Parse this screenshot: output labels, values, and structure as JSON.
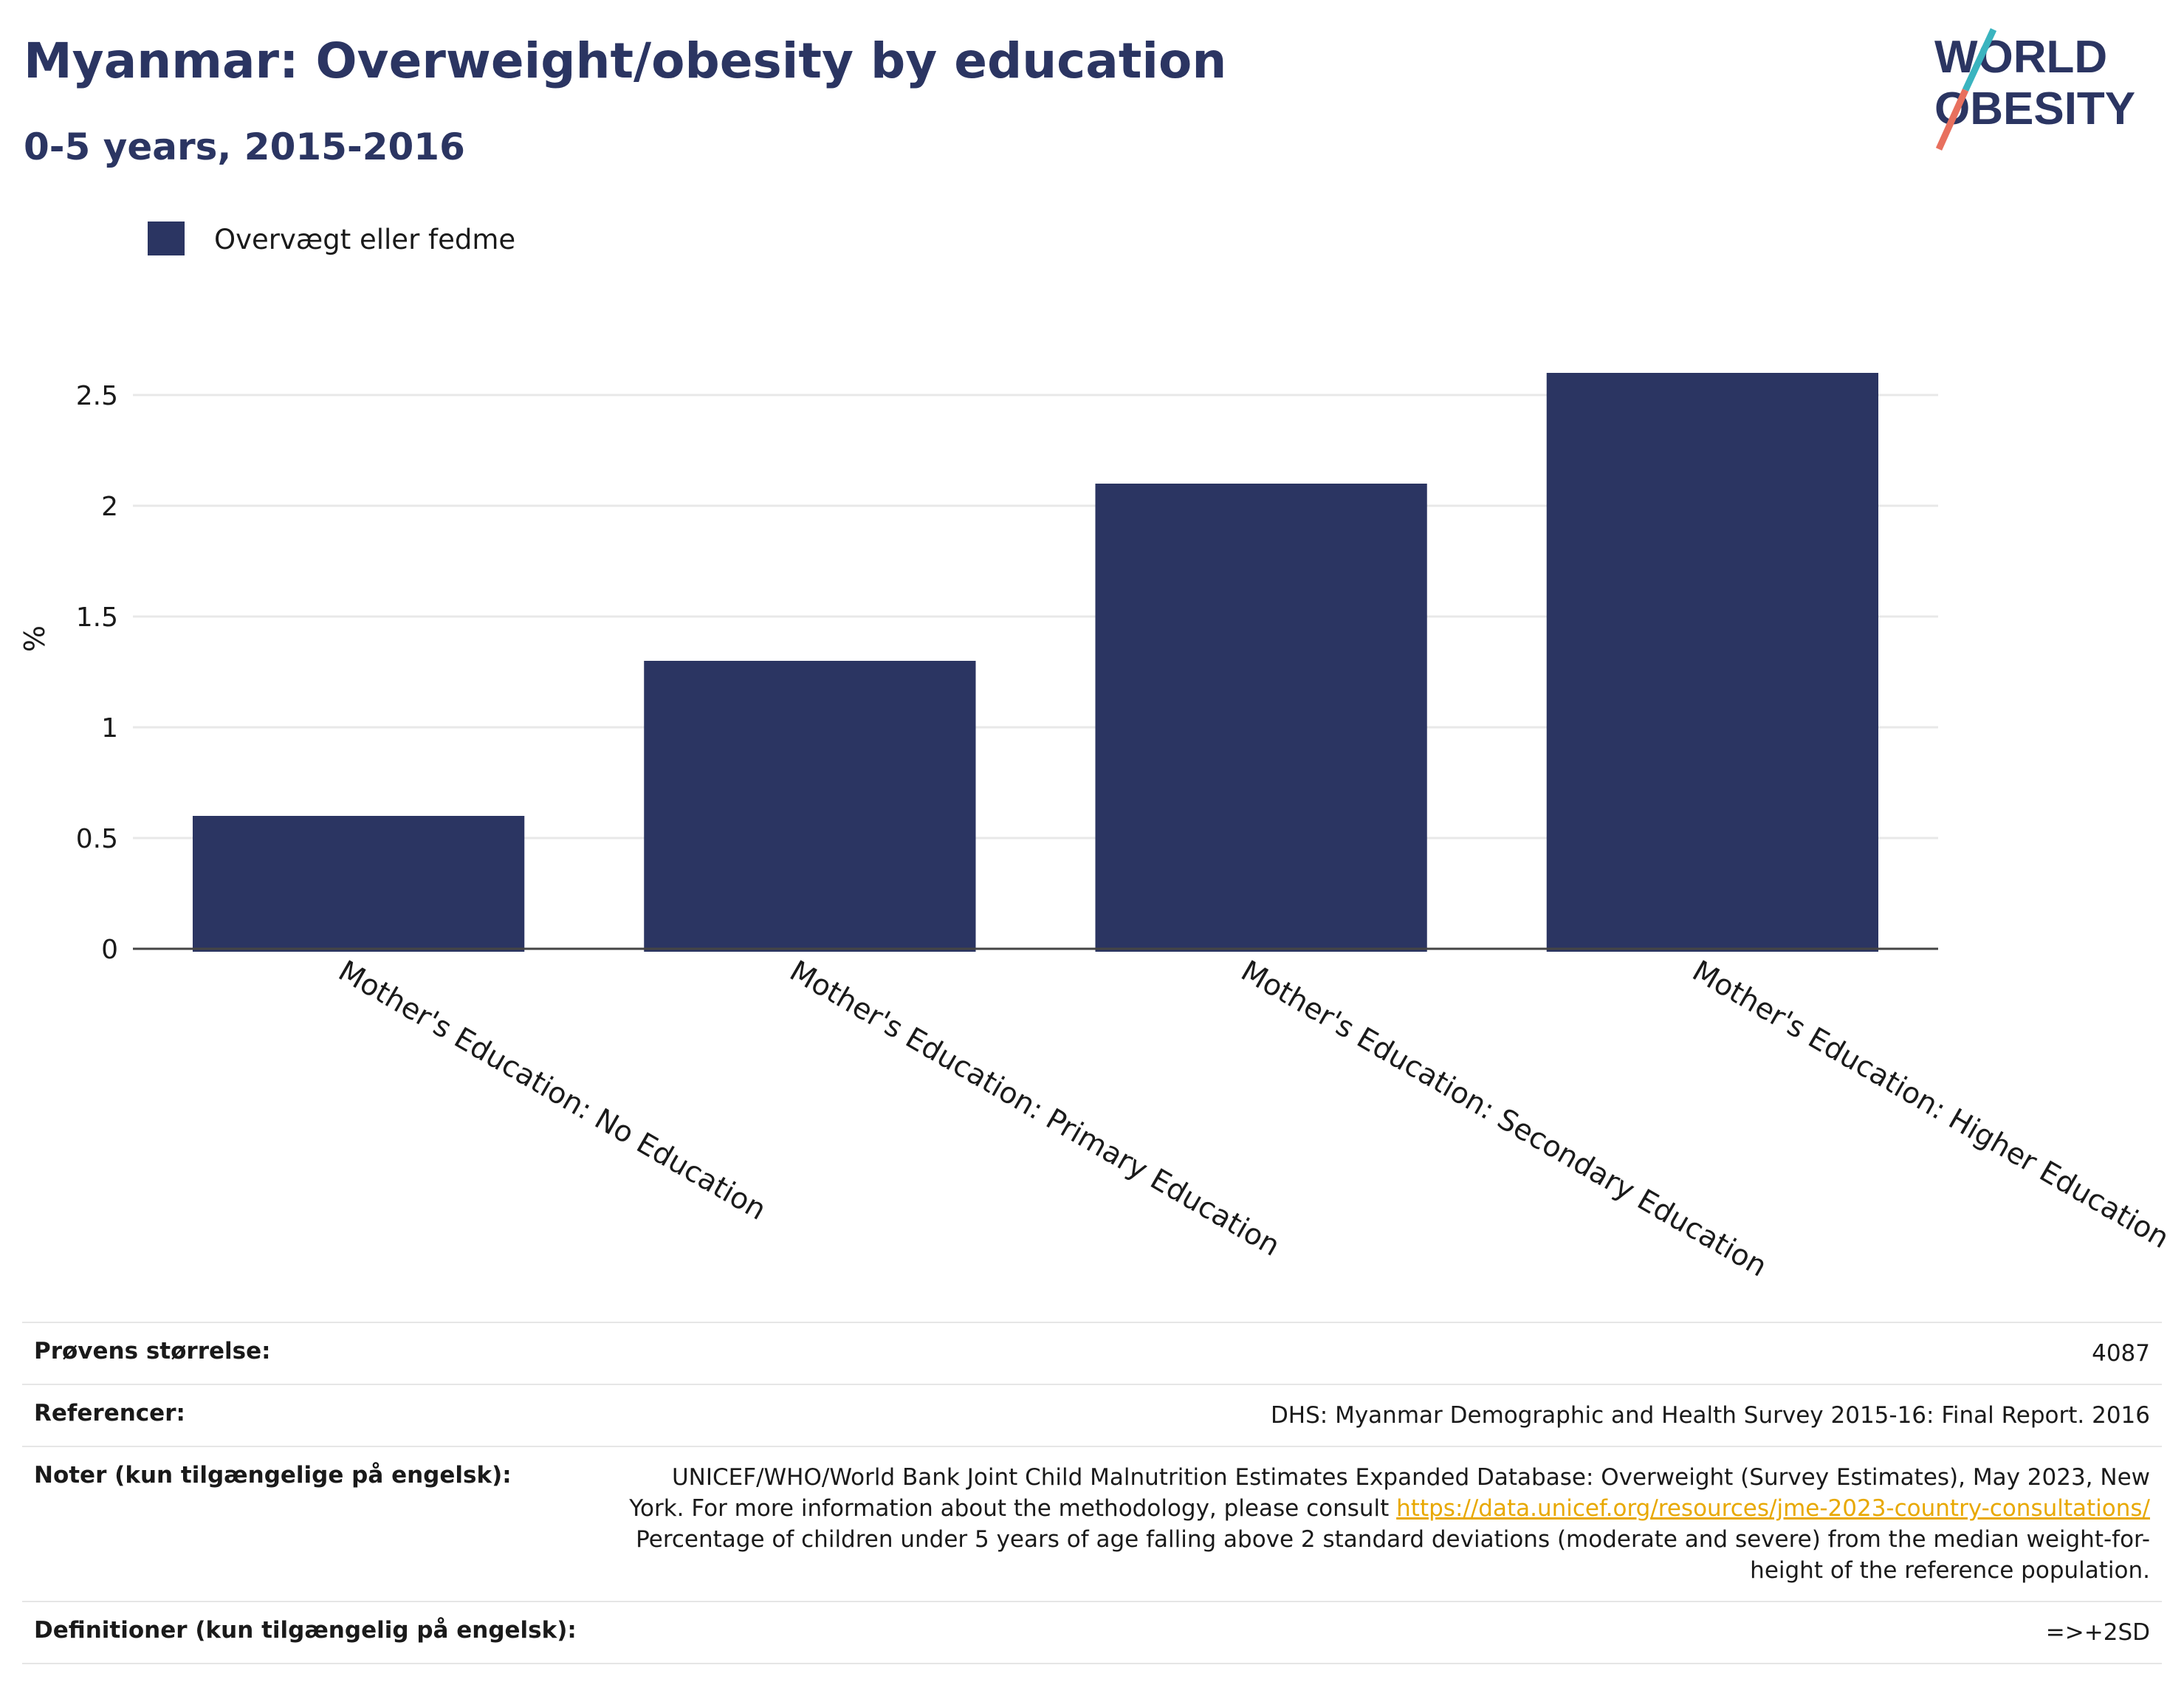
{
  "header": {
    "title": "Myanmar: Overweight/obesity by education",
    "subtitle": "0-5 years, 2015-2016"
  },
  "logo": {
    "line1": "WORLD",
    "line2": "OBESITY"
  },
  "chart_data": {
    "type": "bar",
    "categories": [
      "Mother's Education: No Education",
      "Mother's Education: Primary Education",
      "Mother's Education: Secondary Education",
      "Mother's Education: Higher Education"
    ],
    "series": [
      {
        "name": "Overvægt eller fedme",
        "values": [
          0.6,
          1.3,
          2.1,
          2.6
        ],
        "color": "#2b3562"
      }
    ],
    "ylabel": "%",
    "ylim": [
      0,
      2.75
    ],
    "yticks": [
      0,
      0.5,
      1,
      1.5,
      2,
      2.5
    ],
    "ytick_labels": [
      "0",
      "0.5",
      "1",
      "1.5",
      "2",
      "2.5"
    ],
    "grid": true,
    "legend_position": "top-left"
  },
  "meta": {
    "sample_size_label": "Prøvens størrelse:",
    "sample_size_value": "4087",
    "references_label": "Referencer:",
    "references_value": "DHS: Myanmar Demographic and Health Survey 2015-16: Final Report. 2016",
    "notes_label": "Noter (kun tilgængelige på engelsk):",
    "notes_text_before": "UNICEF/WHO/World Bank Joint Child Malnutrition Estimates Expanded Database: Overweight (Survey Estimates), May 2023, New York. For more information about the methodology, please consult ",
    "notes_link": "https://data.unicef.org/resources/jme-2023-country-consultations/",
    "notes_text_after": " Percentage of children under 5 years of age falling above 2 standard deviations (moderate and severe) from the median weight-for-height of the reference population.",
    "definitions_label": "Definitioner (kun tilgængelig på engelsk):",
    "definitions_value": "=>+2SD"
  }
}
